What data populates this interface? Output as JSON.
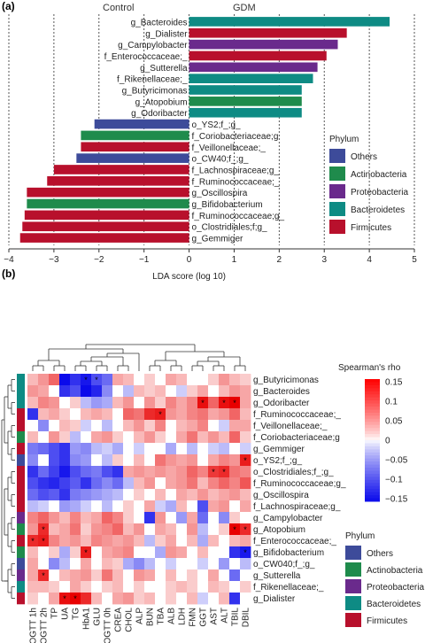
{
  "panel_a": {
    "label": "(a)",
    "group_left": "Control",
    "group_right": "GDM",
    "legend": {
      "title": "Phylum",
      "items": [
        {
          "name": "Others",
          "color": "#3d4b9a"
        },
        {
          "name": "Actinobacteria",
          "color": "#1f8b4c"
        },
        {
          "name": "Proteobacteria",
          "color": "#6a2a8c"
        },
        {
          "name": "Bacteroidetes",
          "color": "#0e8b84"
        },
        {
          "name": "Firmicutes",
          "color": "#b8102c"
        }
      ]
    }
  },
  "panel_b": {
    "label": "(b)",
    "colorbar": {
      "title": "Spearman's rho",
      "ticks": [
        "0.15",
        "0.1",
        "0.05",
        "0",
        "−0.05",
        "−0.1",
        "−0.15"
      ]
    },
    "legend": {
      "title": "Phylum",
      "items": [
        {
          "name": "Others",
          "color": "#3d4b9a"
        },
        {
          "name": "Actinobacteria",
          "color": "#1f8b4c"
        },
        {
          "name": "Proteobacteria",
          "color": "#6a2a8c"
        },
        {
          "name": "Bacteroidetes",
          "color": "#0e8b84"
        },
        {
          "name": "Firmicutes",
          "color": "#b8102c"
        }
      ]
    }
  },
  "chart_data": [
    {
      "type": "bar",
      "orientation": "horizontal",
      "xlabel": "LDA score (log 10)",
      "xlim": [
        -4,
        5
      ],
      "xticks": [
        "−4",
        "−3",
        "−2",
        "−1",
        "0",
        "1",
        "2",
        "3",
        "4",
        "5"
      ],
      "grid": "vertical-dotted",
      "bars": [
        {
          "name": "g_Bacteroides",
          "value": 4.45,
          "phylum": "Bacteroidetes"
        },
        {
          "name": "g_Dialister",
          "value": 3.5,
          "phylum": "Firmicutes"
        },
        {
          "name": "g_Campylobacter",
          "value": 3.3,
          "phylum": "Proteobacteria"
        },
        {
          "name": "f_Enterococcaceae;_",
          "value": 3.05,
          "phylum": "Firmicutes"
        },
        {
          "name": "g_Sutterella",
          "value": 2.85,
          "phylum": "Proteobacteria"
        },
        {
          "name": "f_Rikenellaceae;_",
          "value": 2.75,
          "phylum": "Bacteroidetes"
        },
        {
          "name": "g_Butyricimonas",
          "value": 2.5,
          "phylum": "Bacteroidetes"
        },
        {
          "name": "g_Atopobium",
          "value": 2.5,
          "phylum": "Actinobacteria"
        },
        {
          "name": "g_Odoribacter",
          "value": 2.5,
          "phylum": "Bacteroidetes"
        },
        {
          "name": "o_YS2;f_;g_",
          "value": -2.1,
          "phylum": "Others"
        },
        {
          "name": "f_Coriobacteriaceae;g",
          "value": -2.4,
          "phylum": "Actinobacteria"
        },
        {
          "name": "f_Veillonellaceae;_",
          "value": -2.4,
          "phylum": "Firmicutes"
        },
        {
          "name": "o_CW40;f_;g_",
          "value": -2.5,
          "phylum": "Others"
        },
        {
          "name": "f_Lachnospiraceae;g_",
          "value": -3.0,
          "phylum": "Firmicutes"
        },
        {
          "name": "f_Ruminococcaceae;_",
          "value": -3.15,
          "phylum": "Firmicutes"
        },
        {
          "name": "g_Oscillospira",
          "value": -3.6,
          "phylum": "Firmicutes"
        },
        {
          "name": "g_Bifidobacterium",
          "value": -3.6,
          "phylum": "Actinobacteria"
        },
        {
          "name": "f_Ruminococcaceae;g_",
          "value": -3.65,
          "phylum": "Firmicutes"
        },
        {
          "name": "o_Clostridiales;f;g_",
          "value": -3.7,
          "phylum": "Firmicutes"
        },
        {
          "name": "g_Gemmiger",
          "value": -3.75,
          "phylum": "Firmicutes"
        }
      ]
    },
    {
      "type": "heatmap",
      "value_range": [
        -0.15,
        0.15
      ],
      "rows": [
        {
          "name": "g_Butyricimonas",
          "phylum": "Bacteroidetes"
        },
        {
          "name": "g_Bacteroides",
          "phylum": "Bacteroidetes"
        },
        {
          "name": "g_Odoribacter",
          "phylum": "Bacteroidetes"
        },
        {
          "name": "f_Ruminococcaceae;_",
          "phylum": "Firmicutes"
        },
        {
          "name": "f_Veillonellaceae;_",
          "phylum": "Firmicutes"
        },
        {
          "name": "f_Coriobacteriaceae;g",
          "phylum": "Actinobacteria"
        },
        {
          "name": "g_Gemmiger",
          "phylum": "Firmicutes"
        },
        {
          "name": "o_YS2;f_;g_",
          "phylum": "Others"
        },
        {
          "name": "o_Clostridiales;f_;g_",
          "phylum": "Firmicutes"
        },
        {
          "name": "f_Ruminococcaceae;g_",
          "phylum": "Firmicutes"
        },
        {
          "name": "g_Oscillospira",
          "phylum": "Firmicutes"
        },
        {
          "name": "f_Lachnospiraceae;g_",
          "phylum": "Firmicutes"
        },
        {
          "name": "g_Campylobacter",
          "phylum": "Proteobacteria"
        },
        {
          "name": "g_Atopobium",
          "phylum": "Actinobacteria"
        },
        {
          "name": "f_Enterococcaceae;_",
          "phylum": "Firmicutes"
        },
        {
          "name": "g_Bifidobacterium",
          "phylum": "Actinobacteria"
        },
        {
          "name": "o_CW040;f_;g_",
          "phylum": "Others"
        },
        {
          "name": "g_Sutterella",
          "phylum": "Proteobacteria"
        },
        {
          "name": "f_Rikenellaceae;_",
          "phylum": "Bacteroidetes"
        },
        {
          "name": "g_Dialister",
          "phylum": "Firmicutes"
        }
      ],
      "columns": [
        "OGTT 1h",
        "OGTT 2h",
        "TP",
        "UA",
        "TG",
        "HbA1",
        "GLU",
        "OGTT 0h",
        "CREA",
        "CHOL",
        "ALP",
        "BUN",
        "TBA",
        "ALB",
        "LDH",
        "FMN",
        "GGT",
        "AST",
        "ALT",
        "TBIL",
        "DBIL"
      ],
      "values": [
        [
          0.03,
          0.05,
          0.08,
          -0.15,
          -0.12,
          -0.14,
          -0.1,
          -0.08,
          0.04,
          0.03,
          0.0,
          0.02,
          0.0,
          0.04,
          0.03,
          0.0,
          0.0,
          0.02,
          0.05,
          0.03,
          0.02
        ],
        [
          0.05,
          0.04,
          0.0,
          -0.12,
          -0.1,
          -0.15,
          -0.13,
          -0.06,
          0.0,
          -0.03,
          0.03,
          0.02,
          0.03,
          0.0,
          -0.02,
          0.02,
          0.04,
          0.0,
          0.03,
          0.05,
          0.04
        ],
        [
          0.03,
          0.06,
          0.05,
          0.0,
          0.02,
          -0.03,
          -0.05,
          -0.04,
          0.03,
          0.05,
          0.0,
          0.05,
          0.02,
          0.06,
          0.04,
          0.06,
          0.14,
          0.08,
          0.14,
          0.15,
          0.04
        ],
        [
          -0.12,
          0.03,
          0.04,
          0.02,
          0.0,
          0.03,
          0.04,
          0.03,
          0.0,
          0.08,
          0.07,
          0.12,
          0.13,
          0.05,
          0.04,
          0.06,
          0.07,
          0.04,
          0.05,
          0.08,
          0.03
        ],
        [
          0.0,
          -0.06,
          0.0,
          0.03,
          0.02,
          -0.02,
          0.0,
          -0.03,
          0.0,
          0.03,
          0.05,
          0.02,
          0.06,
          0.0,
          0.03,
          0.04,
          0.06,
          0.0,
          -0.02,
          0.04,
          0.04
        ],
        [
          0.03,
          0.0,
          0.05,
          0.02,
          -0.03,
          0.0,
          0.04,
          0.05,
          0.02,
          0.0,
          0.03,
          0.05,
          0.02,
          0.0,
          0.04,
          0.07,
          0.03,
          0.05,
          0.03,
          0.08,
          0.02
        ],
        [
          -0.07,
          -0.08,
          -0.1,
          -0.12,
          -0.05,
          -0.06,
          -0.03,
          -0.02,
          -0.04,
          0.0,
          -0.02,
          0.0,
          0.0,
          -0.04,
          0.0,
          -0.03,
          0.0,
          -0.02,
          -0.03,
          0.0,
          -0.02
        ],
        [
          -0.06,
          0.0,
          -0.1,
          -0.12,
          -0.06,
          -0.05,
          0.0,
          -0.03,
          0.02,
          0.0,
          0.03,
          0.0,
          0.07,
          0.05,
          0.04,
          0.05,
          0.0,
          0.04,
          0.06,
          0.05,
          0.13
        ],
        [
          -0.12,
          -0.08,
          -0.11,
          -0.14,
          -0.1,
          -0.08,
          -0.07,
          -0.1,
          -0.12,
          0.04,
          0.05,
          0.04,
          0.05,
          0.04,
          0.05,
          0.08,
          0.06,
          0.11,
          0.12,
          0.07,
          0.06
        ],
        [
          -0.1,
          -0.12,
          -0.13,
          -0.11,
          -0.09,
          -0.12,
          -0.08,
          -0.06,
          -0.08,
          -0.03,
          0.03,
          0.05,
          0.0,
          0.04,
          0.05,
          0.07,
          0.03,
          0.06,
          0.08,
          0.06,
          0.09
        ],
        [
          -0.08,
          -0.1,
          -0.09,
          -0.12,
          -0.07,
          -0.06,
          -0.05,
          -0.04,
          -0.03,
          0.0,
          0.02,
          0.0,
          0.03,
          0.0,
          0.04,
          0.03,
          0.05,
          0.03,
          0.04,
          0.05,
          0.03
        ],
        [
          -0.03,
          -0.02,
          0.0,
          -0.05,
          -0.04,
          -0.02,
          0.0,
          -0.03,
          0.0,
          0.02,
          0.0,
          0.04,
          -0.02,
          -0.04,
          0.03,
          0.0,
          -0.1,
          0.04,
          0.05,
          0.0,
          0.04
        ],
        [
          0.06,
          0.08,
          0.05,
          0.03,
          0.06,
          0.03,
          0.04,
          0.08,
          0.06,
          0.02,
          0.0,
          -0.12,
          0.05,
          0.0,
          -0.05,
          0.04,
          -0.08,
          0.0,
          -0.06,
          0.02,
          0.0
        ],
        [
          0.05,
          0.12,
          0.03,
          0.04,
          0.07,
          0.02,
          0.05,
          0.06,
          0.08,
          0.03,
          0.05,
          0.0,
          0.04,
          0.03,
          0.0,
          0.05,
          -0.03,
          0.0,
          0.02,
          0.15,
          0.12
        ],
        [
          0.12,
          0.13,
          0.06,
          0.04,
          0.05,
          0.03,
          0.06,
          0.05,
          0.04,
          0.05,
          0.03,
          -0.03,
          0.02,
          0.04,
          0.0,
          0.03,
          -0.04,
          0.03,
          0.0,
          0.03,
          0.04
        ],
        [
          0.03,
          0.0,
          0.02,
          -0.04,
          0.02,
          0.13,
          0.0,
          0.04,
          0.05,
          0.06,
          0.0,
          0.0,
          -0.04,
          0.05,
          0.04,
          0.0,
          0.03,
          0.0,
          0.0,
          -0.12,
          -0.14
        ],
        [
          0.04,
          0.0,
          -0.06,
          -0.03,
          0.0,
          0.04,
          0.0,
          0.03,
          0.02,
          -0.04,
          -0.06,
          -0.03,
          0.0,
          -0.02,
          0.0,
          0.0,
          -0.02,
          0.0,
          -0.05,
          0.0,
          -0.03
        ],
        [
          0.04,
          0.12,
          0.0,
          0.03,
          0.04,
          0.05,
          0.02,
          0.07,
          0.03,
          0.0,
          0.05,
          0.04,
          0.0,
          0.03,
          0.0,
          0.02,
          0.0,
          0.04,
          0.0,
          -0.08,
          0.0
        ],
        [
          0.03,
          0.03,
          0.02,
          0.0,
          0.04,
          0.02,
          0.0,
          0.02,
          0.03,
          0.0,
          0.02,
          0.0,
          0.0,
          0.02,
          0.03,
          0.02,
          0.0,
          0.03,
          0.02,
          0.0,
          0.02
        ],
        [
          0.02,
          0.0,
          0.04,
          0.14,
          0.15,
          0.12,
          0.03,
          0.0,
          0.04,
          0.05,
          0.02,
          0.03,
          0.0,
          0.02,
          0.0,
          0.03,
          -0.02,
          0.0,
          0.03,
          -0.12,
          0.0
        ]
      ],
      "significant": [
        [
          0,
          5
        ],
        [
          0,
          6
        ],
        [
          2,
          16
        ],
        [
          2,
          18
        ],
        [
          2,
          19
        ],
        [
          3,
          12
        ],
        [
          7,
          20
        ],
        [
          8,
          17
        ],
        [
          8,
          18
        ],
        [
          13,
          1
        ],
        [
          13,
          19
        ],
        [
          13,
          20
        ],
        [
          14,
          0
        ],
        [
          14,
          1
        ],
        [
          15,
          5
        ],
        [
          15,
          20
        ],
        [
          17,
          1
        ],
        [
          19,
          3
        ],
        [
          19,
          4
        ]
      ]
    }
  ]
}
